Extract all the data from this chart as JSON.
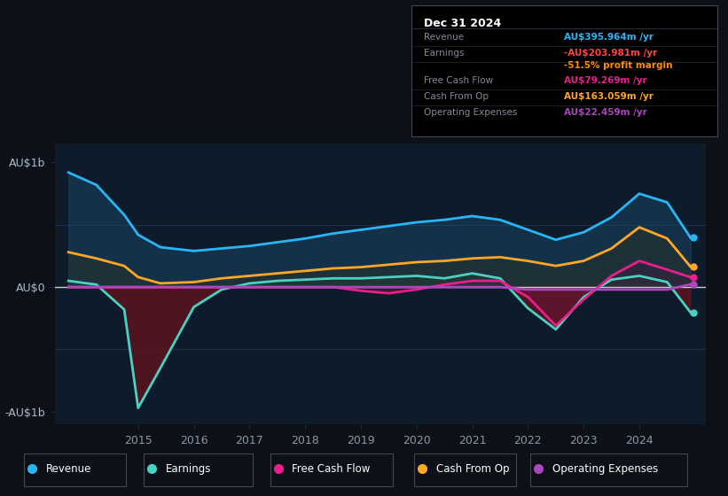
{
  "bg_color": "#0d1117",
  "plot_bg_color": "#0d1b2a",
  "title": "Dec 31 2024",
  "years": [
    2013.75,
    2014.25,
    2014.75,
    2015.0,
    2015.4,
    2016.0,
    2016.5,
    2017.0,
    2017.5,
    2018.0,
    2018.5,
    2019.0,
    2019.5,
    2020.0,
    2020.5,
    2021.0,
    2021.5,
    2022.0,
    2022.5,
    2023.0,
    2023.5,
    2024.0,
    2024.5,
    2024.92
  ],
  "revenue": [
    920,
    820,
    580,
    420,
    320,
    290,
    310,
    330,
    360,
    390,
    430,
    460,
    490,
    520,
    540,
    570,
    540,
    460,
    380,
    440,
    560,
    750,
    680,
    396
  ],
  "earnings": [
    50,
    20,
    -180,
    -970,
    -650,
    -160,
    -20,
    30,
    50,
    60,
    70,
    70,
    80,
    90,
    70,
    110,
    70,
    -170,
    -340,
    -80,
    60,
    90,
    40,
    -204
  ],
  "free_cash_flow": [
    0,
    0,
    0,
    0,
    0,
    0,
    0,
    0,
    0,
    0,
    0,
    -30,
    -50,
    -20,
    20,
    50,
    50,
    -80,
    -310,
    -100,
    90,
    210,
    140,
    79
  ],
  "cash_from_op": [
    280,
    230,
    170,
    80,
    30,
    40,
    70,
    90,
    110,
    130,
    150,
    160,
    180,
    200,
    210,
    230,
    240,
    210,
    170,
    210,
    310,
    480,
    390,
    163
  ],
  "operating_expenses": [
    0,
    0,
    0,
    0,
    0,
    0,
    0,
    0,
    0,
    0,
    0,
    0,
    0,
    0,
    0,
    0,
    0,
    -20,
    -20,
    -20,
    -20,
    -20,
    -20,
    22
  ],
  "revenue_color": "#29b6f6",
  "revenue_fill_color": "#1a4a6a",
  "earnings_color": "#4dd0c4",
  "earnings_neg_fill": "#5a1520",
  "earnings_pos_fill": "#1a4a40",
  "free_cash_flow_color": "#e91e8c",
  "free_cash_flow_neg_fill": "#6a1535",
  "free_cash_flow_pos_fill": "#5a1535",
  "cash_from_op_color": "#ffa726",
  "cash_from_op_fill": "#3a3010",
  "operating_expenses_color": "#ab47bc",
  "xlabel_color": "#8899aa",
  "ylabel_color": "#aabbcc",
  "grid_color": "#1e3050",
  "zero_line_color": "#cccccc",
  "ylim": [
    -1100,
    1150
  ],
  "yticks": [
    -1000,
    0,
    1000
  ],
  "ytick_labels": [
    "-AU$1b",
    "AU$0",
    "AU$1b"
  ],
  "xtick_years": [
    2015,
    2016,
    2017,
    2018,
    2019,
    2020,
    2021,
    2022,
    2023,
    2024
  ],
  "legend_labels": [
    "Revenue",
    "Earnings",
    "Free Cash Flow",
    "Cash From Op",
    "Operating Expenses"
  ],
  "legend_colors": [
    "#29b6f6",
    "#4dd0c4",
    "#e91e8c",
    "#ffa726",
    "#ab47bc"
  ],
  "info_box": {
    "title": "Dec 31 2024",
    "rows": [
      {
        "label": "Revenue",
        "value": "AU$395.964m /yr",
        "value_color": "#29b6f6"
      },
      {
        "label": "Earnings",
        "value": "-AU$203.981m /yr",
        "value_color": "#ff4444"
      },
      {
        "label": "",
        "value": "-51.5% profit margin",
        "value_color": "#ff8c00"
      },
      {
        "label": "Free Cash Flow",
        "value": "AU$79.269m /yr",
        "value_color": "#e91e8c"
      },
      {
        "label": "Cash From Op",
        "value": "AU$163.059m /yr",
        "value_color": "#ffa726"
      },
      {
        "label": "Operating Expenses",
        "value": "AU$22.459m /yr",
        "value_color": "#ab47bc"
      }
    ]
  }
}
